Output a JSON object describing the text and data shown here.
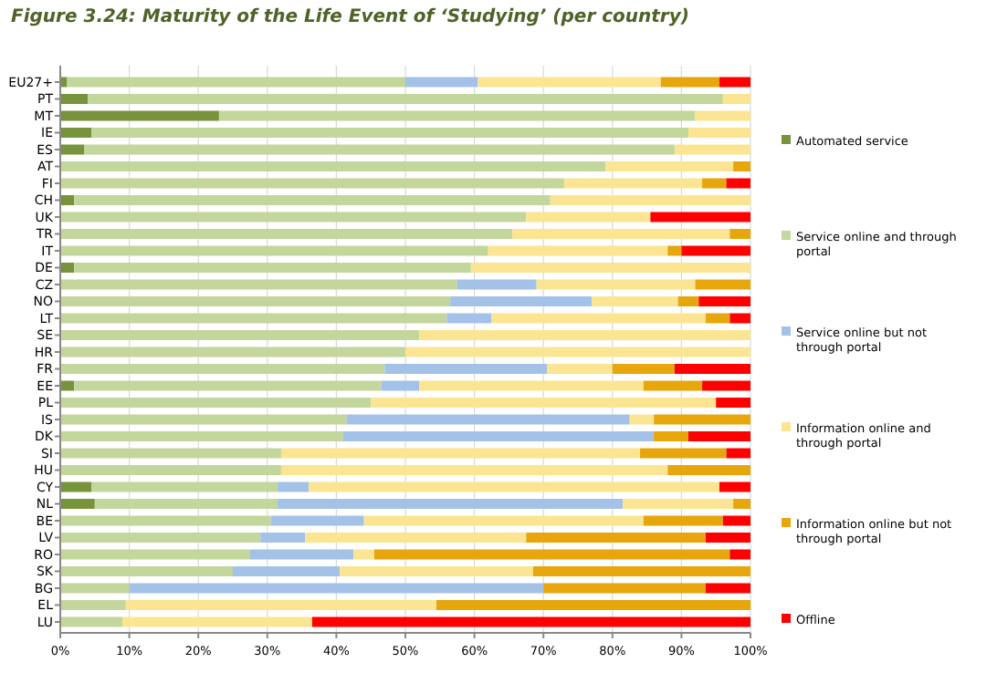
{
  "chart_data": {
    "type": "bar",
    "orientation": "horizontal",
    "stacked": true,
    "title": "Figure 3.24: Maturity of the Life Event of ‘Studying’ (per country)",
    "categories": [
      "EU27+",
      "PT",
      "MT",
      "IE",
      "ES",
      "AT",
      "FI",
      "CH",
      "UK",
      "TR",
      "IT",
      "DE",
      "CZ",
      "NO",
      "LT",
      "SE",
      "HR",
      "FR",
      "EE",
      "PL",
      "IS",
      "DK",
      "SI",
      "HU",
      "CY",
      "NL",
      "BE",
      "LV",
      "RO",
      "SK",
      "BG",
      "EL",
      "LU"
    ],
    "series": [
      {
        "name": "Automated service",
        "color": "#77933c",
        "values": [
          1,
          4,
          23,
          4.5,
          3.5,
          0,
          0,
          2,
          0,
          0,
          0,
          2,
          0,
          0,
          0,
          0,
          0,
          0,
          2,
          0,
          0,
          0,
          0,
          0,
          4.5,
          5,
          0,
          0,
          0,
          0,
          0,
          0,
          0
        ]
      },
      {
        "name": "Service online and through portal",
        "color": "#c3d69b",
        "values": [
          49,
          92,
          69,
          86.5,
          85.5,
          79,
          73,
          69,
          67.5,
          65.5,
          62,
          57.5,
          57.5,
          56.5,
          56,
          52,
          50,
          47,
          44.5,
          45,
          41.5,
          41,
          32,
          32,
          27,
          26.5,
          30.5,
          29,
          27.5,
          25,
          10,
          9.5,
          9
        ]
      },
      {
        "name": "Service online but not through portal",
        "color": "#a4c2e8",
        "values": [
          10.5,
          0,
          0,
          0,
          0,
          0,
          0,
          0,
          0,
          0,
          0,
          0,
          11.5,
          20.5,
          6.5,
          0,
          0,
          23.5,
          5.5,
          0,
          41,
          45,
          0,
          0,
          4.5,
          50,
          13.5,
          6.5,
          15,
          15.5,
          60,
          0,
          0
        ]
      },
      {
        "name": "Information online and through portal",
        "color": "#fbe592",
        "values": [
          26.5,
          4,
          8,
          9,
          11,
          18.5,
          20,
          29,
          18,
          31.5,
          26,
          40.5,
          23,
          12.5,
          31,
          48,
          50,
          9.5,
          32.5,
          50,
          3.5,
          0,
          52,
          56,
          59.5,
          16,
          40.5,
          32,
          3,
          28,
          0,
          45,
          27.5
        ]
      },
      {
        "name": "Information online but not through portal",
        "color": "#e6a60c",
        "values": [
          8.5,
          0,
          0,
          0,
          0,
          2.5,
          3.5,
          0,
          0,
          3,
          2,
          0,
          8,
          3,
          3.5,
          0,
          0,
          9,
          8.5,
          0,
          14,
          5,
          12.5,
          12,
          0,
          2.5,
          11.5,
          26,
          51.5,
          31.5,
          23.5,
          45.5,
          0
        ]
      },
      {
        "name": "Offline",
        "color": "#ff0000",
        "values": [
          4.5,
          0,
          0,
          0,
          0,
          0,
          3.5,
          0,
          14.5,
          0,
          10,
          0,
          0,
          7.5,
          3,
          0,
          0,
          11,
          7,
          5,
          0,
          9,
          3.5,
          0,
          4.5,
          0,
          4,
          6.5,
          3,
          0,
          6.5,
          0,
          63.5
        ]
      }
    ],
    "xlim": [
      0,
      100
    ],
    "xticks": [
      {
        "value": 0,
        "label": "0%"
      },
      {
        "value": 10,
        "label": "10%"
      },
      {
        "value": 20,
        "label": "20%"
      },
      {
        "value": 30,
        "label": "30%"
      },
      {
        "value": 40,
        "label": "40%"
      },
      {
        "value": 50,
        "label": "50%"
      },
      {
        "value": 60,
        "label": "60%"
      },
      {
        "value": 70,
        "label": "70%"
      },
      {
        "value": 80,
        "label": "80%"
      },
      {
        "value": 90,
        "label": "90%"
      },
      {
        "value": 100,
        "label": "100%"
      }
    ],
    "grid": "x",
    "legend": "right"
  }
}
